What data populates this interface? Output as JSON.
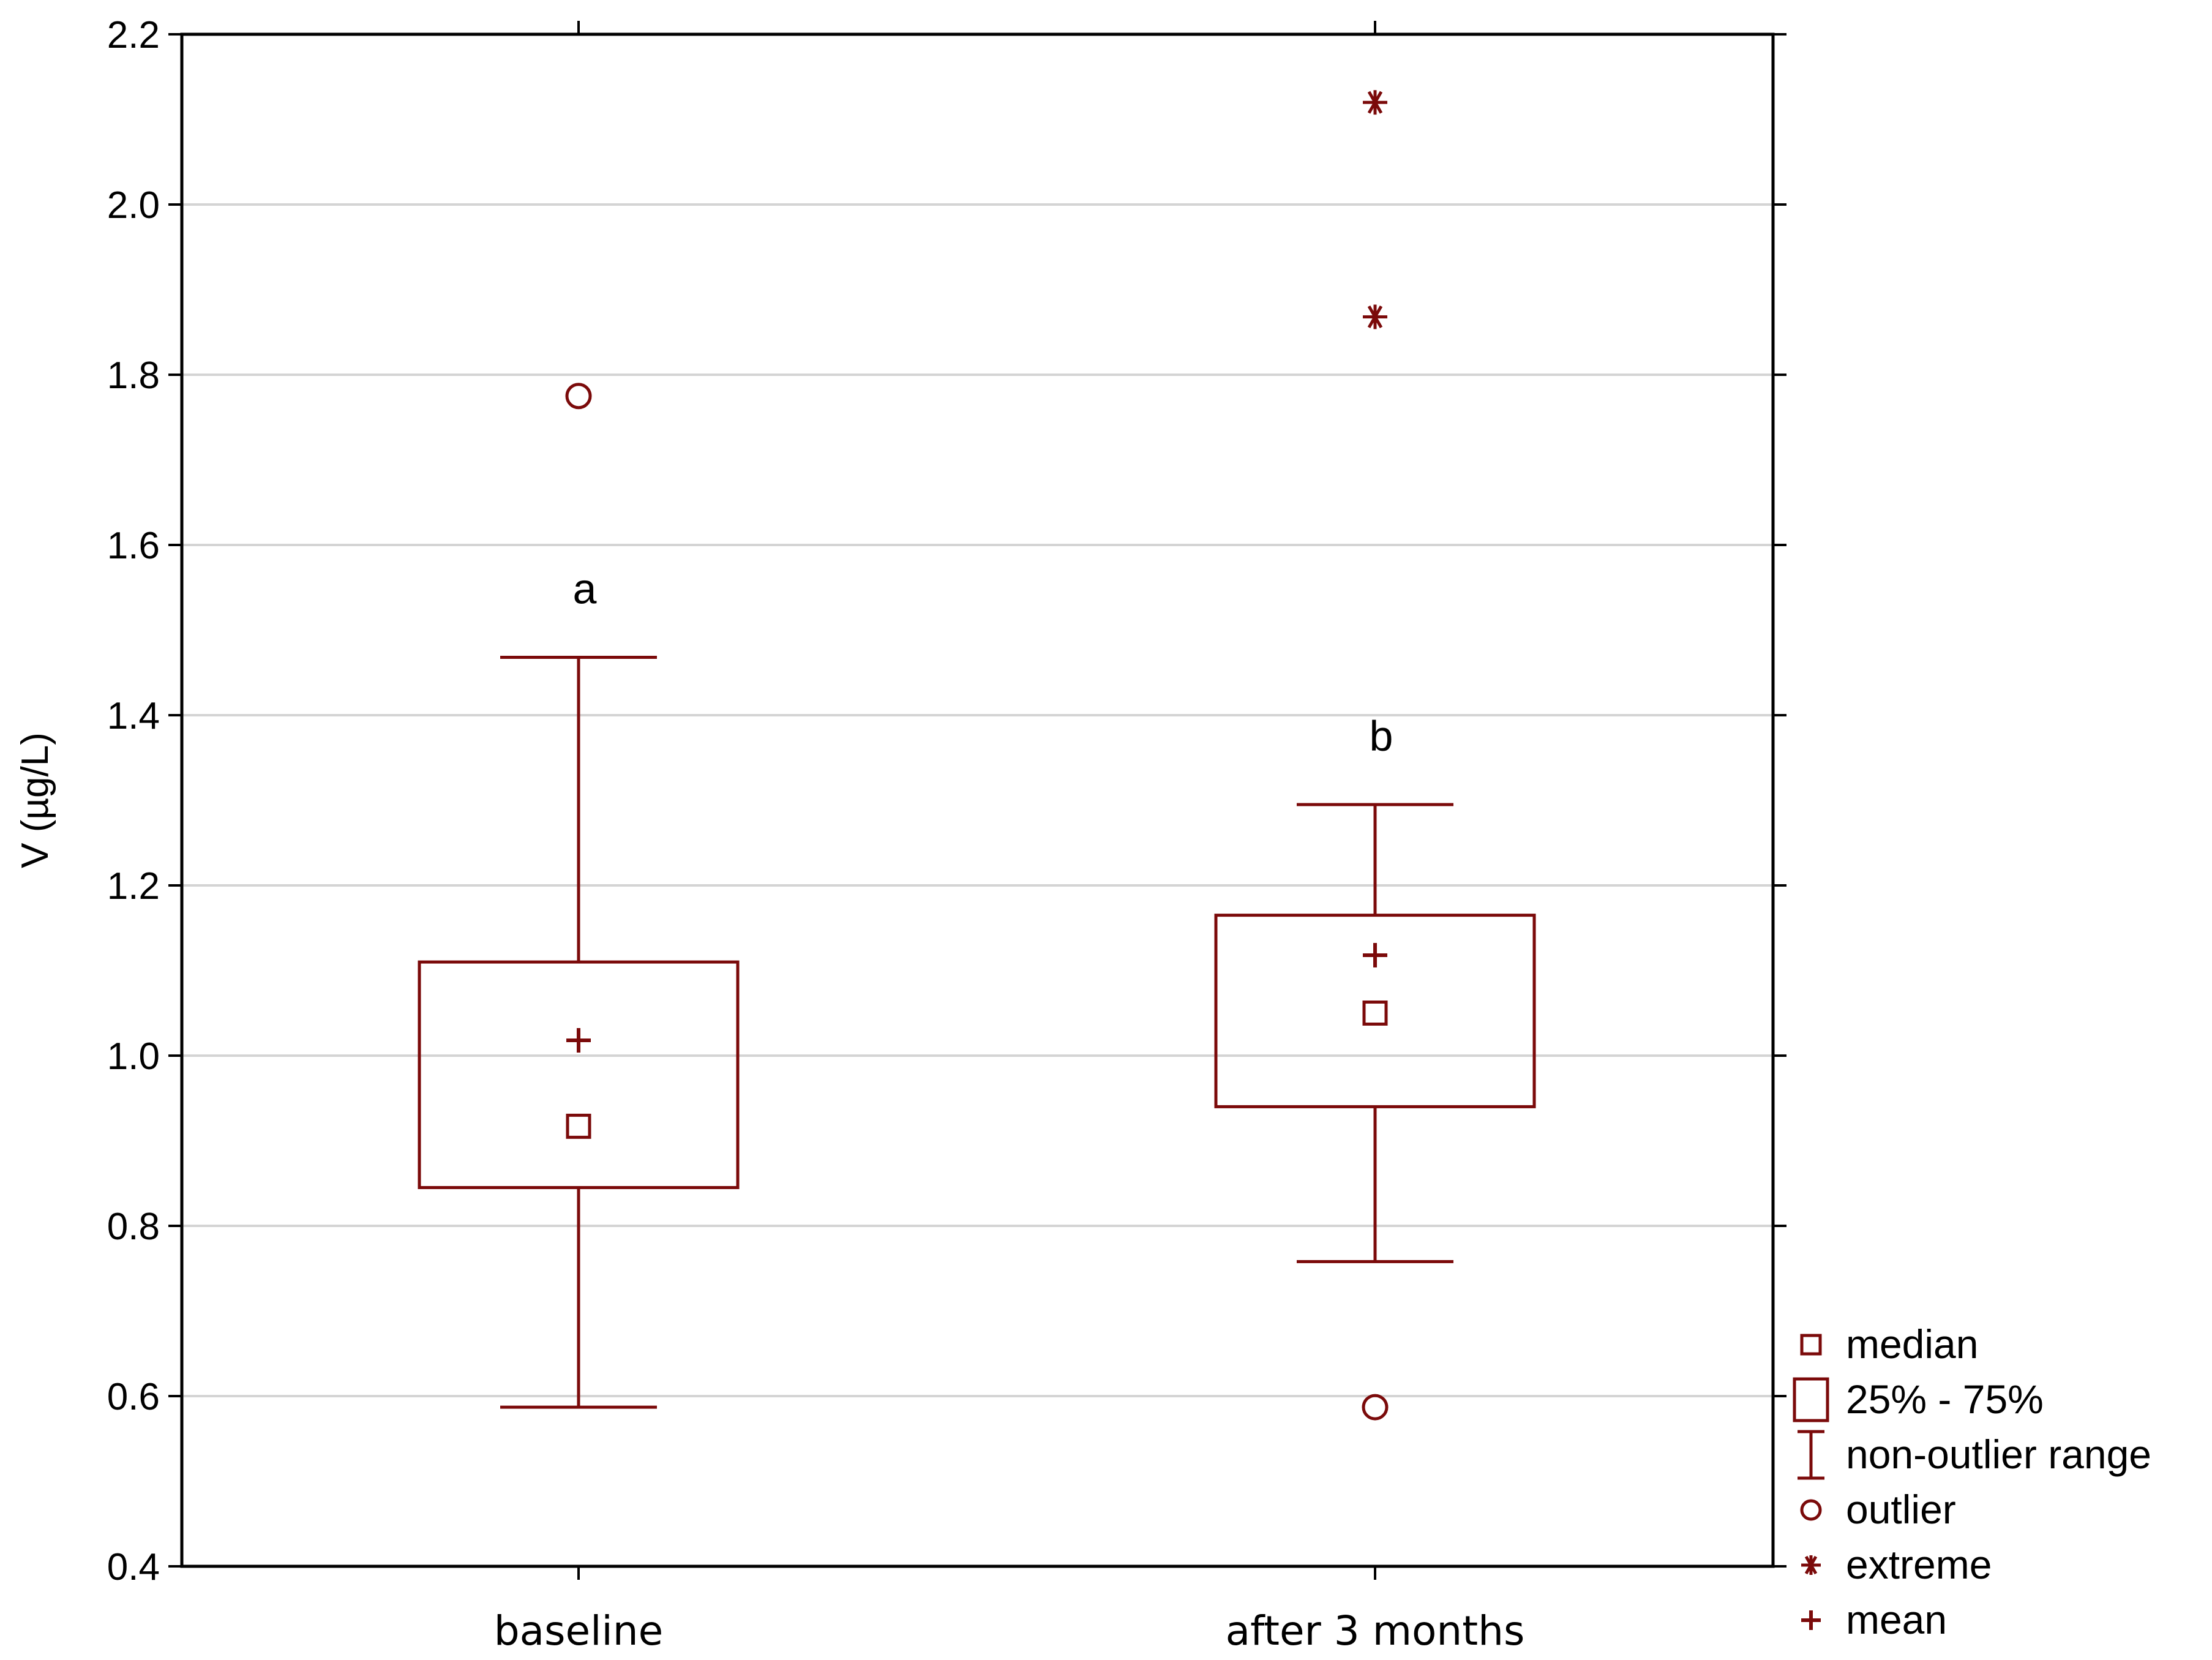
{
  "chart_data": {
    "type": "boxplot",
    "title": "",
    "xlabel": "",
    "ylabel": "V (µg/L)",
    "ylim": [
      0.4,
      2.2
    ],
    "yticks": [
      "0.4",
      "0.6",
      "0.8",
      "1.0",
      "1.2",
      "1.4",
      "1.6",
      "1.8",
      "2.0",
      "2.2"
    ],
    "grid": true,
    "color": "#7b0a0a",
    "categories": [
      "baseline",
      "after 3 months"
    ],
    "series": [
      {
        "name": "baseline",
        "median": 0.917,
        "q1": 0.845,
        "q3": 1.11,
        "whisker_low": 0.587,
        "whisker_high": 1.468,
        "mean": 1.018,
        "outliers": [
          1.775
        ],
        "extremes": [],
        "annotation": "a"
      },
      {
        "name": "after 3 months",
        "median": 1.05,
        "q1": 0.94,
        "q3": 1.165,
        "whisker_low": 0.758,
        "whisker_high": 1.295,
        "mean": 1.118,
        "outliers": [
          0.587
        ],
        "extremes": [
          2.12,
          1.868
        ],
        "annotation": "b"
      }
    ],
    "legend": {
      "position": "bottom-right",
      "items": [
        {
          "symbol": "median-square",
          "label": "median"
        },
        {
          "symbol": "box",
          "label": "25% - 75%"
        },
        {
          "symbol": "whisker",
          "label": "non-outlier range"
        },
        {
          "symbol": "circle",
          "label": "outlier"
        },
        {
          "symbol": "asterisk",
          "label": "extreme"
        },
        {
          "symbol": "plus",
          "label": "mean"
        }
      ]
    }
  }
}
